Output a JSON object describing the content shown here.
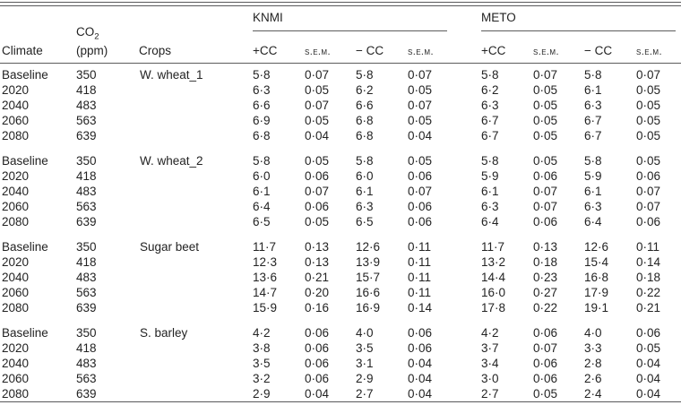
{
  "table": {
    "headers": {
      "climate": "Climate",
      "co2_base": "CO",
      "co2_sub": "2",
      "co2_unit": "(ppm)",
      "crops": "Crops",
      "knmi_label": "KNMI",
      "meto_label": "METO",
      "knmi_cols": [
        "+CC",
        "s.e.m.",
        "− CC",
        "s.e.m."
      ],
      "meto_cols": [
        "+CC",
        "s.e.m.",
        "− CC",
        "s.e.m."
      ]
    },
    "rows": [
      {
        "climate": "Baseline",
        "co2": "350",
        "crop": "W. wheat_1",
        "values": [
          "5·8",
          "0·07",
          "5·8",
          "0·07",
          "5·8",
          "0·07",
          "5·8",
          "0·07"
        ]
      },
      {
        "climate": "2020",
        "co2": "418",
        "crop": "",
        "values": [
          "6·3",
          "0·05",
          "6·2",
          "0·05",
          "6·2",
          "0·05",
          "6·1",
          "0·05"
        ]
      },
      {
        "climate": "2040",
        "co2": "483",
        "crop": "",
        "values": [
          "6·6",
          "0·07",
          "6·6",
          "0·07",
          "6·3",
          "0·05",
          "6·3",
          "0·05"
        ]
      },
      {
        "climate": "2060",
        "co2": "563",
        "crop": "",
        "values": [
          "6·9",
          "0·05",
          "6·8",
          "0·05",
          "6·7",
          "0·05",
          "6·7",
          "0·05"
        ]
      },
      {
        "climate": "2080",
        "co2": "639",
        "crop": "",
        "values": [
          "6·8",
          "0·04",
          "6·8",
          "0·04",
          "6·7",
          "0·05",
          "6·7",
          "0·05"
        ]
      },
      {
        "climate": "Baseline",
        "co2": "350",
        "crop": "W. wheat_2",
        "values": [
          "5·8",
          "0·05",
          "5·8",
          "0·05",
          "5·8",
          "0·05",
          "5·8",
          "0·05"
        ]
      },
      {
        "climate": "2020",
        "co2": "418",
        "crop": "",
        "values": [
          "6·0",
          "0·06",
          "6·0",
          "0·06",
          "5·9",
          "0·06",
          "5·9",
          "0·06"
        ]
      },
      {
        "climate": "2040",
        "co2": "483",
        "crop": "",
        "values": [
          "6·1",
          "0·07",
          "6·1",
          "0·07",
          "6·1",
          "0·07",
          "6·1",
          "0·07"
        ]
      },
      {
        "climate": "2060",
        "co2": "563",
        "crop": "",
        "values": [
          "6·4",
          "0·06",
          "6·3",
          "0·06",
          "6·3",
          "0·07",
          "6·3",
          "0·07"
        ]
      },
      {
        "climate": "2080",
        "co2": "639",
        "crop": "",
        "values": [
          "6·5",
          "0·05",
          "6·5",
          "0·06",
          "6·4",
          "0·06",
          "6·4",
          "0·06"
        ]
      },
      {
        "climate": "Baseline",
        "co2": "350",
        "crop": "Sugar beet",
        "values": [
          "11·7",
          "0·13",
          "12·6",
          "0·11",
          "11·7",
          "0·13",
          "12·6",
          "0·11"
        ]
      },
      {
        "climate": "2020",
        "co2": "418",
        "crop": "",
        "values": [
          "12·3",
          "0·13",
          "13·9",
          "0·11",
          "13·2",
          "0·18",
          "15·4",
          "0·14"
        ]
      },
      {
        "climate": "2040",
        "co2": "483",
        "crop": "",
        "values": [
          "13·6",
          "0·21",
          "15·7",
          "0·11",
          "14·4",
          "0·23",
          "16·8",
          "0·18"
        ]
      },
      {
        "climate": "2060",
        "co2": "563",
        "crop": "",
        "values": [
          "14·7",
          "0·20",
          "16·6",
          "0·11",
          "16·0",
          "0·27",
          "17·9",
          "0·22"
        ]
      },
      {
        "climate": "2080",
        "co2": "639",
        "crop": "",
        "values": [
          "15·9",
          "0·16",
          "16·9",
          "0·14",
          "17·8",
          "0·22",
          "19·1",
          "0·21"
        ]
      },
      {
        "climate": "Baseline",
        "co2": "350",
        "crop": "S. barley",
        "values": [
          "4·2",
          "0·06",
          "4·0",
          "0·06",
          "4·2",
          "0·06",
          "4·0",
          "0·06"
        ]
      },
      {
        "climate": "2020",
        "co2": "418",
        "crop": "",
        "values": [
          "3·8",
          "0·06",
          "3·5",
          "0·06",
          "3·7",
          "0·07",
          "3·3",
          "0·05"
        ]
      },
      {
        "climate": "2040",
        "co2": "483",
        "crop": "",
        "values": [
          "3·5",
          "0·06",
          "3·1",
          "0·04",
          "3·4",
          "0·06",
          "2·8",
          "0·04"
        ]
      },
      {
        "climate": "2060",
        "co2": "563",
        "crop": "",
        "values": [
          "3·2",
          "0·06",
          "2·9",
          "0·04",
          "3·0",
          "0·06",
          "2·6",
          "0·04"
        ]
      },
      {
        "climate": "2080",
        "co2": "639",
        "crop": "",
        "values": [
          "2·9",
          "0·04",
          "2·7",
          "0·04",
          "2·7",
          "0·05",
          "2·4",
          "0·04"
        ]
      }
    ]
  }
}
